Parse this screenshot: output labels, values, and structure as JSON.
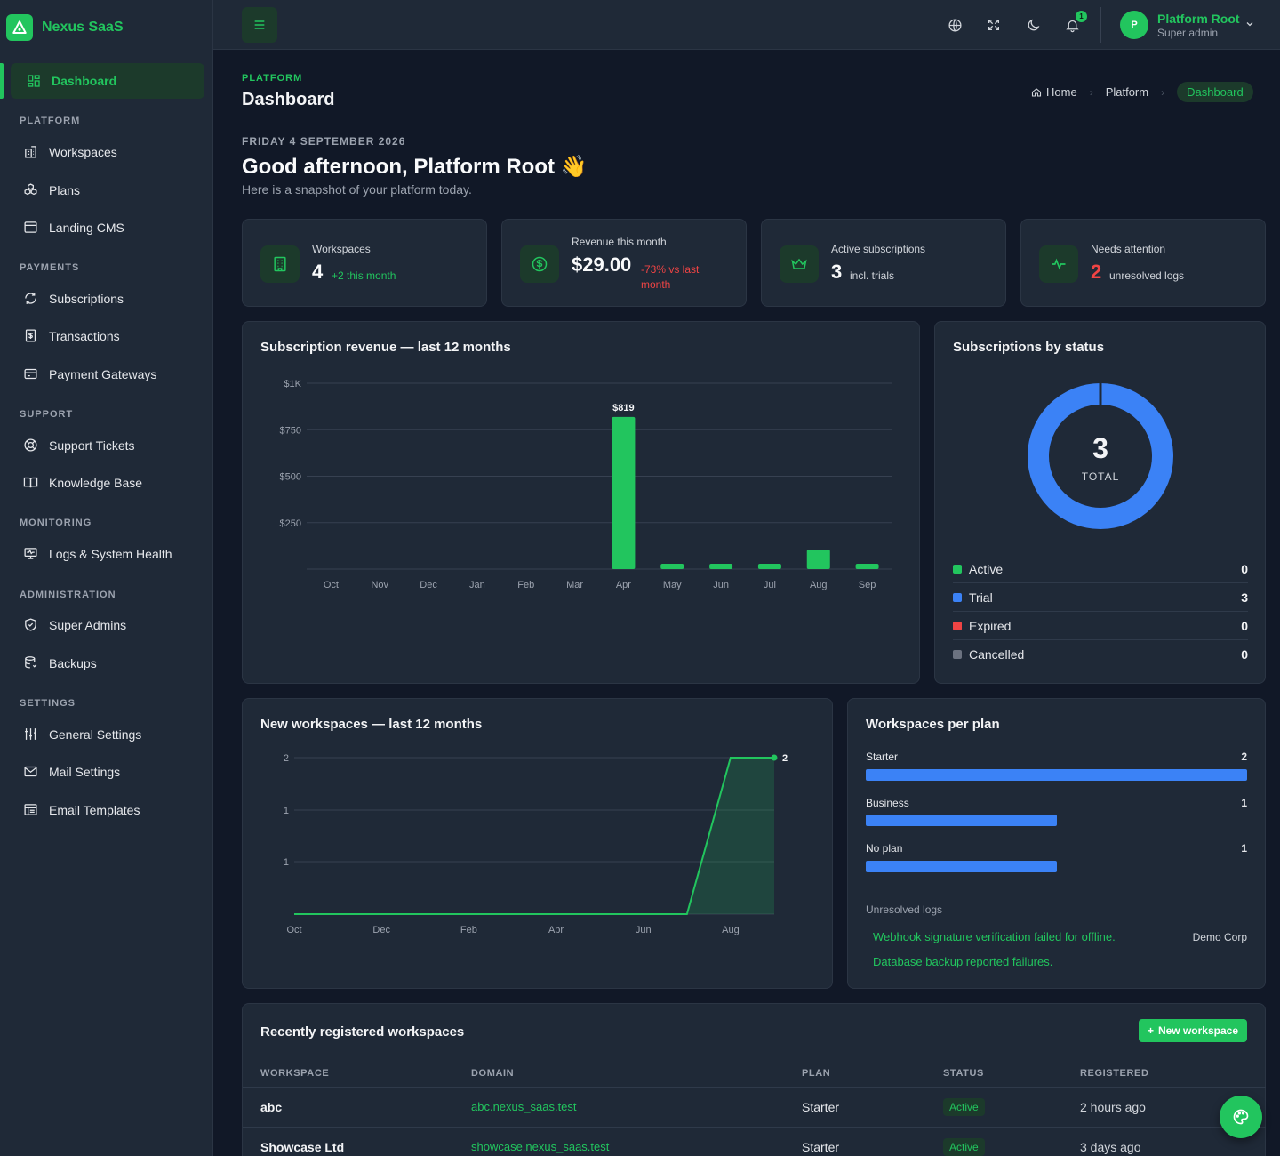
{
  "app": {
    "name": "Nexus SaaS"
  },
  "sidebar": {
    "active": "Dashboard",
    "sections": [
      {
        "title": "PLATFORM",
        "items": [
          "Workspaces",
          "Plans",
          "Landing CMS"
        ]
      },
      {
        "title": "PAYMENTS",
        "items": [
          "Subscriptions",
          "Transactions",
          "Payment Gateways"
        ]
      },
      {
        "title": "SUPPORT",
        "items": [
          "Support Tickets",
          "Knowledge Base"
        ]
      },
      {
        "title": "MONITORING",
        "items": [
          "Logs & System Health"
        ]
      },
      {
        "title": "ADMINISTRATION",
        "items": [
          "Super Admins",
          "Backups"
        ]
      },
      {
        "title": "SETTINGS",
        "items": [
          "General Settings",
          "Mail Settings",
          "Email Templates"
        ]
      }
    ]
  },
  "topbar": {
    "notification_count": "1",
    "user": {
      "initial": "P",
      "name": "Platform Root",
      "role": "Super admin"
    }
  },
  "header": {
    "eyebrow": "PLATFORM",
    "title": "Dashboard",
    "breadcrumb": [
      "Home",
      "Platform",
      "Dashboard"
    ],
    "date": "FRIDAY 4 SEPTEMBER 2026",
    "greeting": "Good afternoon, Platform Root 👋",
    "subtitle": "Here is a snapshot of your platform today."
  },
  "stats": [
    {
      "label": "Workspaces",
      "value": "4",
      "note": "+2 this month",
      "tone": "positive",
      "icon": "building-icon"
    },
    {
      "label": "Revenue this month",
      "value": "$29.00",
      "note": "-73% vs last month",
      "tone": "negative",
      "icon": "dollar-icon"
    },
    {
      "label": "Active subscriptions",
      "value": "3",
      "note": "incl. trials",
      "tone": "neutral",
      "icon": "crown-icon"
    },
    {
      "label": "Needs attention",
      "value": "2",
      "note": "unresolved logs",
      "tone": "neutral",
      "icon": "activity-icon"
    }
  ],
  "revenue_card": {
    "title": "Subscription revenue — last 12 months"
  },
  "status_card": {
    "title": "Subscriptions by status",
    "total": "3",
    "total_label": "TOTAL",
    "legend": [
      {
        "label": "Active",
        "value": "0",
        "color": "#22c55e"
      },
      {
        "label": "Trial",
        "value": "3",
        "color": "#3b82f6"
      },
      {
        "label": "Expired",
        "value": "0",
        "color": "#ef4444"
      },
      {
        "label": "Cancelled",
        "value": "0",
        "color": "#6b7280"
      }
    ]
  },
  "workspaces_card": {
    "title": "New workspaces — last 12 months"
  },
  "plan_card": {
    "title": "Workspaces per plan",
    "plans": [
      {
        "label": "Starter",
        "count": "2",
        "fraction": 1.0
      },
      {
        "label": "Business",
        "count": "1",
        "fraction": 0.5
      },
      {
        "label": "No plan",
        "count": "1",
        "fraction": 0.5
      }
    ],
    "logs_title": "Unresolved logs",
    "logs": [
      {
        "message": "Webhook signature verification failed for offline.",
        "source": "Demo Corp"
      },
      {
        "message": "Database backup reported failures.",
        "source": ""
      }
    ]
  },
  "recent": {
    "title": "Recently registered workspaces",
    "new_button": "New workspace",
    "columns": [
      "WORKSPACE",
      "DOMAIN",
      "PLAN",
      "STATUS",
      "REGISTERED"
    ],
    "rows": [
      {
        "name": "abc",
        "domain": "abc.nexus_saas.test",
        "plan": "Starter",
        "status": "Active",
        "registered": "2 hours ago"
      },
      {
        "name": "Showcase Ltd",
        "domain": "showcase.nexus_saas.test",
        "plan": "Starter",
        "status": "Active",
        "registered": "3 days ago"
      }
    ]
  },
  "chart_data": [
    {
      "type": "bar",
      "title": "Subscription revenue — last 12 months",
      "categories": [
        "Oct",
        "Nov",
        "Dec",
        "Jan",
        "Feb",
        "Mar",
        "Apr",
        "May",
        "Jun",
        "Jul",
        "Aug",
        "Sep"
      ],
      "values": [
        0,
        0,
        0,
        0,
        0,
        0,
        819,
        29,
        29,
        29,
        105,
        29
      ],
      "data_labels": {
        "Apr": "$819"
      },
      "yticks": [
        "$1K",
        "$750",
        "$500",
        "$250"
      ],
      "ytick_values": [
        1000,
        750,
        500,
        250
      ],
      "ylim": [
        0,
        1000
      ],
      "color": "#22c55e"
    },
    {
      "type": "pie",
      "title": "Subscriptions by status",
      "categories": [
        "Active",
        "Trial",
        "Expired",
        "Cancelled"
      ],
      "values": [
        0,
        3,
        0,
        0
      ],
      "colors": [
        "#22c55e",
        "#3b82f6",
        "#ef4444",
        "#6b7280"
      ]
    },
    {
      "type": "area",
      "title": "New workspaces — last 12 months",
      "x": [
        "Oct",
        "Nov",
        "Dec",
        "Jan",
        "Feb",
        "Mar",
        "Apr",
        "May",
        "Jun",
        "Jul",
        "Aug",
        "Sep"
      ],
      "values": [
        0,
        0,
        0,
        0,
        0,
        0,
        0,
        0,
        0,
        0,
        2,
        2
      ],
      "xticks": [
        "Oct",
        "Dec",
        "Feb",
        "Apr",
        "Jun",
        "Aug"
      ],
      "yticks": [
        "2",
        "1",
        "1"
      ],
      "ytick_values": [
        2,
        1.33,
        0.67
      ],
      "ylim": [
        0,
        2
      ],
      "last_label": "2",
      "color": "#22c55e"
    },
    {
      "type": "bar",
      "title": "Workspaces per plan",
      "categories": [
        "Starter",
        "Business",
        "No plan"
      ],
      "values": [
        2,
        1,
        1
      ],
      "color": "#3b82f6"
    }
  ]
}
